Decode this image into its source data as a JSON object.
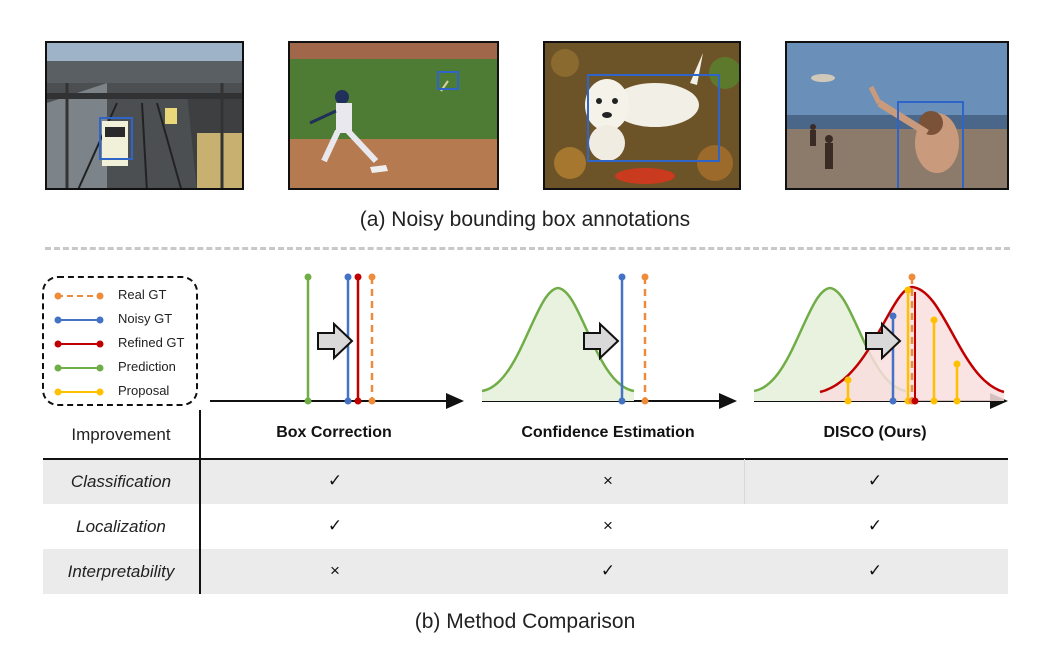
{
  "caption_a": "(a) Noisy bounding box annotations",
  "caption_b": "(b) Method Comparison",
  "legend": [
    {
      "label": "Real GT",
      "color": "#ed8c3a",
      "dashed": true
    },
    {
      "label": "Noisy GT",
      "color": "#4472c4",
      "dashed": false
    },
    {
      "label": "Refined GT",
      "color": "#c00000",
      "dashed": false
    },
    {
      "label": "Prediction",
      "color": "#70ad47",
      "dashed": false
    },
    {
      "label": "Proposal",
      "color": "#ffc000",
      "dashed": false
    }
  ],
  "table": {
    "header": [
      "Improvement",
      "Box Correction",
      "Confidence Estimation",
      "DISCO (Ours)"
    ],
    "rows": [
      {
        "label": "Classification",
        "marks": [
          "✓",
          "×",
          "✓"
        ]
      },
      {
        "label": "Localization",
        "marks": [
          "✓",
          "×",
          "✓"
        ]
      },
      {
        "label": "Interpretability",
        "marks": [
          "×",
          "✓",
          "✓"
        ]
      }
    ]
  },
  "colors": {
    "real_gt": "#ed8c3a",
    "noisy_gt": "#4472c4",
    "refined_gt": "#c00000",
    "prediction": "#70ad47",
    "proposal": "#ffc000"
  }
}
